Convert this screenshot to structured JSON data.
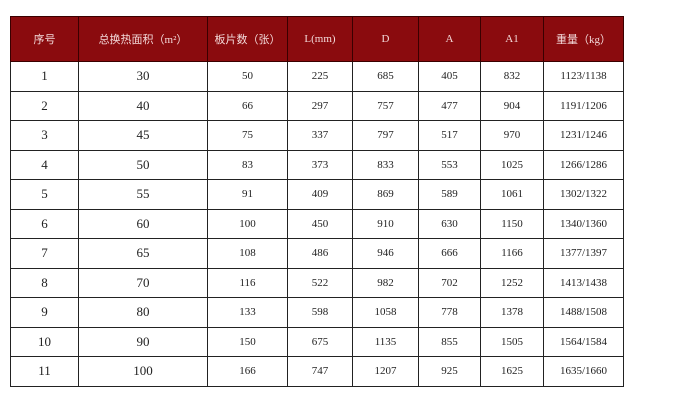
{
  "header_bg": "#8a0b0e",
  "columns": [
    "序号",
    "总换热面积（m²）",
    "板片数（张）",
    "L(mm)",
    "D",
    "A",
    "A1",
    "重量（kg）"
  ],
  "rows": [
    [
      "1",
      "30",
      "50",
      "225",
      "685",
      "405",
      "832",
      "1123/1138"
    ],
    [
      "2",
      "40",
      "66",
      "297",
      "757",
      "477",
      "904",
      "1191/1206"
    ],
    [
      "3",
      "45",
      "75",
      "337",
      "797",
      "517",
      "970",
      "1231/1246"
    ],
    [
      "4",
      "50",
      "83",
      "373",
      "833",
      "553",
      "1025",
      "1266/1286"
    ],
    [
      "5",
      "55",
      "91",
      "409",
      "869",
      "589",
      "1061",
      "1302/1322"
    ],
    [
      "6",
      "60",
      "100",
      "450",
      "910",
      "630",
      "1150",
      "1340/1360"
    ],
    [
      "7",
      "65",
      "108",
      "486",
      "946",
      "666",
      "1166",
      "1377/1397"
    ],
    [
      "8",
      "70",
      "116",
      "522",
      "982",
      "702",
      "1252",
      "1413/1438"
    ],
    [
      "9",
      "80",
      "133",
      "598",
      "1058",
      "778",
      "1378",
      "1488/1508"
    ],
    [
      "10",
      "90",
      "150",
      "675",
      "1135",
      "855",
      "1505",
      "1564/1584"
    ],
    [
      "11",
      "100",
      "166",
      "747",
      "1207",
      "925",
      "1625",
      "1635/1660"
    ]
  ]
}
